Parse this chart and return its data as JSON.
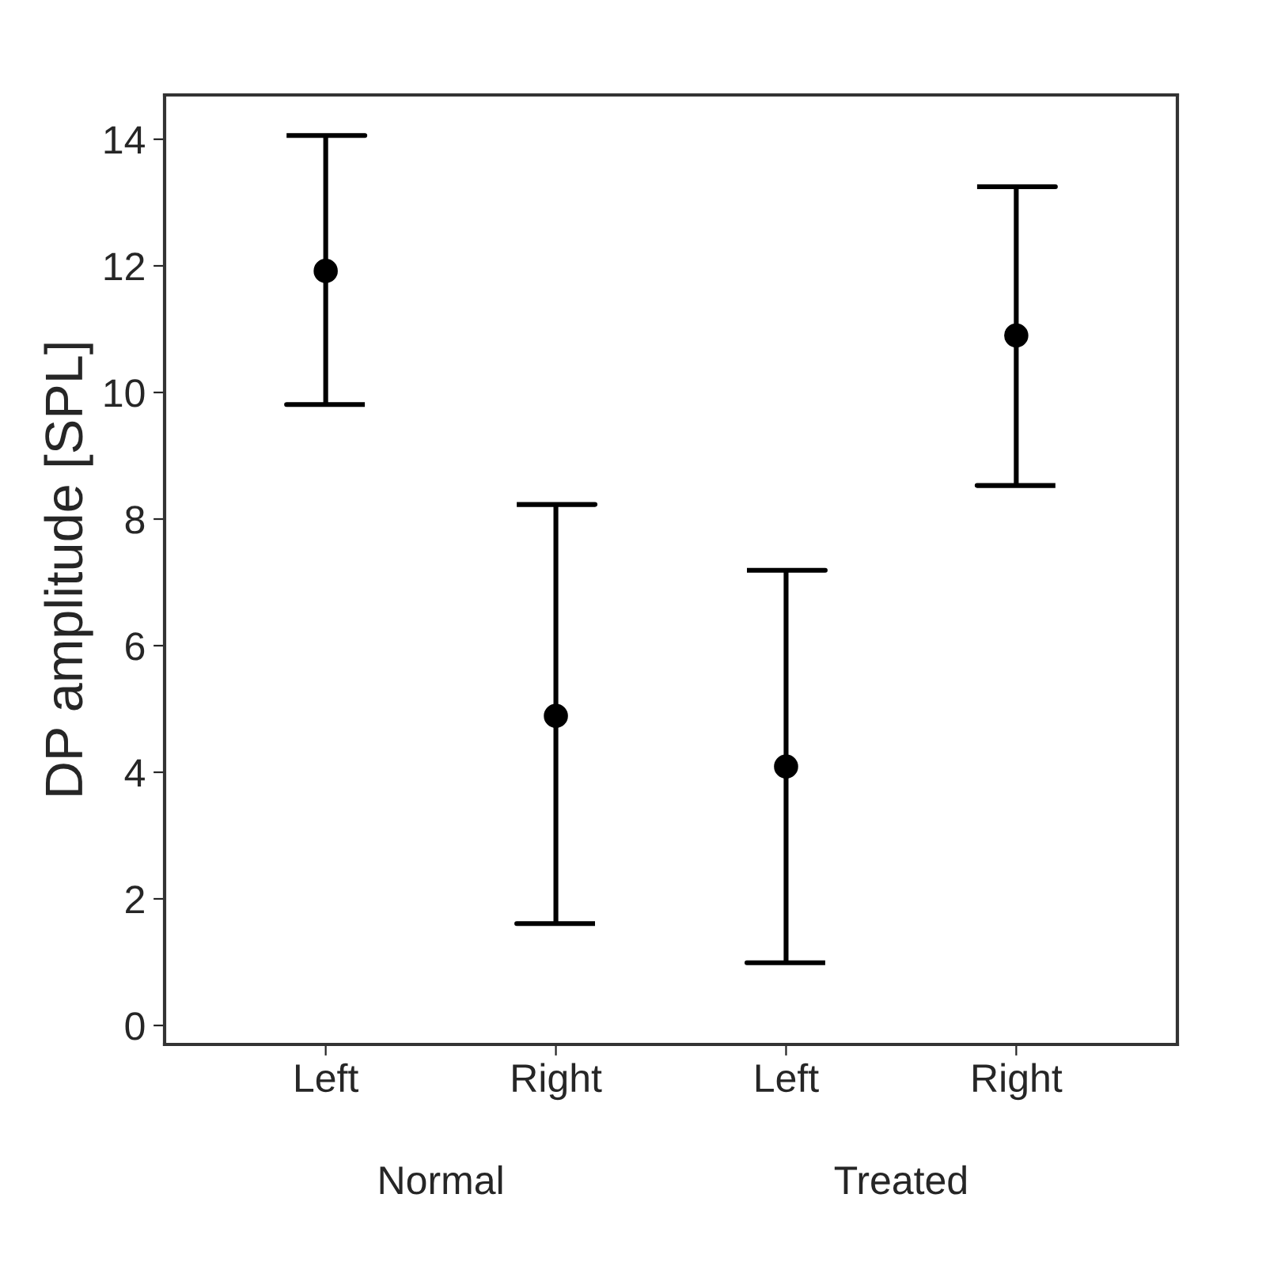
{
  "chart_data": {
    "type": "scatter",
    "ylabel": "DP amplitude [SPL]",
    "categories": [
      "Left",
      "Right",
      "Left",
      "Right"
    ],
    "values": [
      11.92,
      4.89,
      4.09,
      10.9
    ],
    "errors": [
      [
        9.81,
        14.06
      ],
      [
        1.61,
        8.23
      ],
      [
        0.99,
        7.19
      ],
      [
        8.53,
        13.25
      ]
    ],
    "color": "#000000",
    "marker": "circle",
    "annotations": [
      "Normal",
      "Treated"
    ],
    "ylim": [
      -0.3,
      14.7
    ],
    "yticks": [
      0,
      2,
      4,
      6,
      8,
      10,
      12,
      14
    ],
    "grid": false
  }
}
